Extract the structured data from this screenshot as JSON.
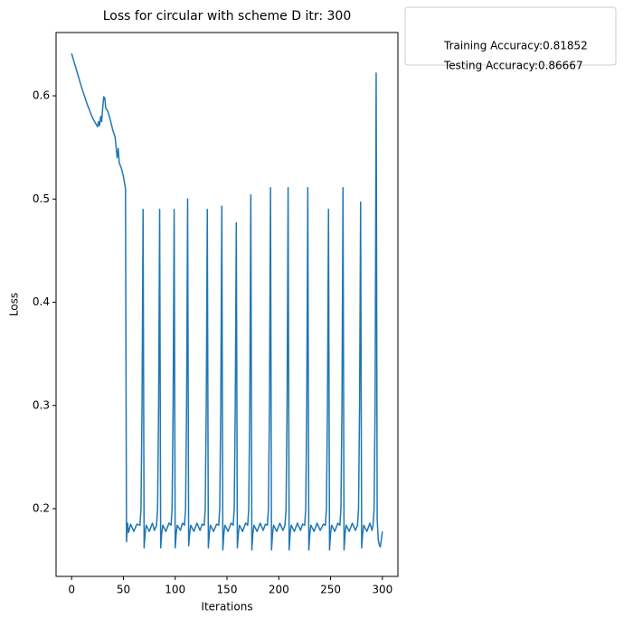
{
  "chart_data": {
    "type": "line",
    "title": "Loss for circular with scheme D itr: 300",
    "x_label": "Iterations",
    "y_label": "Loss",
    "x": [
      0,
      5,
      10,
      15,
      20,
      25,
      26,
      27,
      28,
      29,
      30,
      31,
      32,
      33,
      35,
      37,
      40,
      42,
      43,
      44,
      45,
      46,
      48,
      50,
      52,
      53,
      54,
      55,
      57,
      60,
      63,
      66,
      67,
      68,
      69,
      70,
      71,
      72,
      75,
      78,
      80,
      82,
      83,
      84,
      85,
      86,
      87,
      88,
      91,
      94,
      96,
      97,
      98,
      99,
      100,
      101,
      102,
      105,
      107,
      109,
      110,
      111,
      112,
      113,
      114,
      115,
      118,
      121,
      124,
      126,
      128,
      129,
      130,
      131,
      132,
      133,
      134,
      137,
      140,
      142,
      143,
      144,
      145,
      146,
      147,
      148,
      151,
      154,
      156,
      157,
      158,
      159,
      160,
      161,
      162,
      165,
      168,
      170,
      171,
      172,
      173,
      174,
      175,
      176,
      179,
      182,
      185,
      187,
      189,
      190,
      191,
      192,
      193,
      194,
      195,
      198,
      201,
      204,
      206,
      207,
      208,
      209,
      210,
      211,
      212,
      215,
      218,
      221,
      223,
      225,
      226,
      227,
      228,
      229,
      230,
      231,
      234,
      237,
      240,
      243,
      245,
      246,
      247,
      248,
      249,
      250,
      251,
      254,
      257,
      259,
      260,
      261,
      262,
      263,
      264,
      265,
      268,
      271,
      274,
      276,
      277,
      278,
      279,
      280,
      281,
      282,
      285,
      288,
      290,
      291,
      292,
      293,
      294,
      295,
      296,
      297,
      298,
      299,
      300
    ],
    "series": [
      {
        "color": "#1f77b4",
        "values": [
          0.641,
          0.624,
          0.607,
          0.592,
          0.579,
          0.57,
          0.575,
          0.571,
          0.58,
          0.575,
          0.588,
          0.599,
          0.598,
          0.588,
          0.585,
          0.578,
          0.566,
          0.56,
          0.55,
          0.54,
          0.549,
          0.535,
          0.53,
          0.522,
          0.51,
          0.168,
          0.186,
          0.177,
          0.185,
          0.178,
          0.185,
          0.184,
          0.2,
          0.3,
          0.49,
          0.162,
          0.176,
          0.184,
          0.178,
          0.186,
          0.179,
          0.184,
          0.2,
          0.3,
          0.49,
          0.162,
          0.176,
          0.184,
          0.178,
          0.186,
          0.184,
          0.2,
          0.3,
          0.49,
          0.162,
          0.176,
          0.184,
          0.179,
          0.186,
          0.184,
          0.2,
          0.3,
          0.5,
          0.164,
          0.176,
          0.184,
          0.178,
          0.186,
          0.179,
          0.185,
          0.184,
          0.2,
          0.3,
          0.49,
          0.162,
          0.176,
          0.184,
          0.178,
          0.185,
          0.184,
          0.2,
          0.3,
          0.493,
          0.16,
          0.176,
          0.184,
          0.178,
          0.186,
          0.184,
          0.2,
          0.3,
          0.477,
          0.162,
          0.176,
          0.184,
          0.178,
          0.186,
          0.184,
          0.2,
          0.3,
          0.504,
          0.16,
          0.176,
          0.184,
          0.178,
          0.186,
          0.179,
          0.185,
          0.184,
          0.2,
          0.3,
          0.511,
          0.16,
          0.176,
          0.184,
          0.178,
          0.186,
          0.179,
          0.184,
          0.2,
          0.3,
          0.511,
          0.16,
          0.176,
          0.184,
          0.178,
          0.186,
          0.179,
          0.185,
          0.184,
          0.2,
          0.3,
          0.511,
          0.16,
          0.176,
          0.184,
          0.178,
          0.186,
          0.179,
          0.185,
          0.184,
          0.2,
          0.3,
          0.49,
          0.16,
          0.176,
          0.184,
          0.178,
          0.186,
          0.184,
          0.2,
          0.3,
          0.511,
          0.16,
          0.176,
          0.184,
          0.178,
          0.186,
          0.179,
          0.184,
          0.2,
          0.3,
          0.497,
          0.162,
          0.176,
          0.184,
          0.178,
          0.186,
          0.179,
          0.184,
          0.2,
          0.3,
          0.622,
          0.19,
          0.17,
          0.165,
          0.163,
          0.17,
          0.178
        ]
      }
    ],
    "xlim": [
      -15,
      315
    ],
    "xticks": [
      0,
      50,
      100,
      150,
      200,
      250,
      300
    ],
    "ylim": [
      0.1344,
      0.6613
    ],
    "yticks": [
      0.2,
      0.3,
      0.4,
      0.5,
      0.6
    ],
    "legend": [
      "Training Accuracy:0.81852",
      "Testing Accuracy:0.86667"
    ],
    "legend_position": "outside-right-top"
  }
}
